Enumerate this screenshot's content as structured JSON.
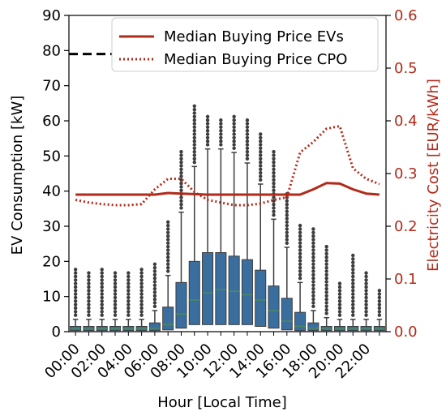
{
  "chart_data": {
    "type": "box",
    "xlabel": "Hour [Local Time]",
    "ylabel": "EV Consumption [kW]",
    "y2label": "Electricity Cost [EUR/kWh]",
    "ylim": [
      0,
      90
    ],
    "y2lim": [
      0,
      0.6
    ],
    "yticks": [
      "0",
      "10",
      "20",
      "30",
      "40",
      "50",
      "60",
      "70",
      "80",
      "90"
    ],
    "y2ticks": [
      "0.0",
      "0.1",
      "0.2",
      "0.3",
      "0.4",
      "0.5",
      "0.6"
    ],
    "xtick_labels": [
      "00:00",
      "02:00",
      "04:00",
      "06:00",
      "08:00",
      "10:00",
      "12:00",
      "14:00",
      "16:00",
      "18:00",
      "20:00",
      "22:00"
    ],
    "hours": [
      0,
      1,
      2,
      3,
      4,
      5,
      6,
      7,
      8,
      9,
      10,
      11,
      12,
      13,
      14,
      15,
      16,
      17,
      18,
      19,
      20,
      21,
      22,
      23
    ],
    "box_color": "#3a6e9e",
    "price_color": "#b22a1a",
    "reference_line": {
      "value": 79,
      "style": "dashed",
      "color": "#000000"
    },
    "boxes": [
      {
        "hour": 0,
        "q1": 0.3,
        "median": 0.8,
        "q3": 1.5,
        "whisker_low": 0,
        "whisker_high": 3.5,
        "flier_max": 18
      },
      {
        "hour": 1,
        "q1": 0.3,
        "median": 0.8,
        "q3": 1.5,
        "whisker_low": 0,
        "whisker_high": 3.5,
        "flier_max": 17.5
      },
      {
        "hour": 2,
        "q1": 0.3,
        "median": 0.8,
        "q3": 1.5,
        "whisker_low": 0,
        "whisker_high": 3.5,
        "flier_max": 18
      },
      {
        "hour": 3,
        "q1": 0.3,
        "median": 0.8,
        "q3": 1.5,
        "whisker_low": 0,
        "whisker_high": 3.5,
        "flier_max": 17
      },
      {
        "hour": 4,
        "q1": 0.3,
        "median": 0.8,
        "q3": 1.5,
        "whisker_low": 0,
        "whisker_high": 3.5,
        "flier_max": 17.5
      },
      {
        "hour": 5,
        "q1": 0.3,
        "median": 0.8,
        "q3": 1.5,
        "whisker_low": 0,
        "whisker_high": 3.5,
        "flier_max": 18
      },
      {
        "hour": 6,
        "q1": 0.3,
        "median": 1.0,
        "q3": 2.5,
        "whisker_low": 0,
        "whisker_high": 6,
        "flier_max": 20
      },
      {
        "hour": 7,
        "q1": 0.5,
        "median": 2.0,
        "q3": 7,
        "whisker_low": 0,
        "whisker_high": 16,
        "flier_max": 32
      },
      {
        "hour": 8,
        "q1": 1,
        "median": 5,
        "q3": 14,
        "whisker_low": 0,
        "whisker_high": 34,
        "flier_max": 52
      },
      {
        "hour": 9,
        "q1": 2,
        "median": 9,
        "q3": 20,
        "whisker_low": 0,
        "whisker_high": 47,
        "flier_max": 65
      },
      {
        "hour": 10,
        "q1": 2,
        "median": 11,
        "q3": 22.5,
        "whisker_low": 0,
        "whisker_high": 52,
        "flier_max": 62
      },
      {
        "hour": 11,
        "q1": 2,
        "median": 12,
        "q3": 22.5,
        "whisker_low": 0,
        "whisker_high": 52,
        "flier_max": 61
      },
      {
        "hour": 12,
        "q1": 2,
        "median": 11.5,
        "q3": 21.5,
        "whisker_low": 0,
        "whisker_high": 51,
        "flier_max": 62
      },
      {
        "hour": 13,
        "q1": 2,
        "median": 10.5,
        "q3": 20.5,
        "whisker_low": 0,
        "whisker_high": 48,
        "flier_max": 61
      },
      {
        "hour": 14,
        "q1": 1.5,
        "median": 9,
        "q3": 17.5,
        "whisker_low": 0,
        "whisker_high": 42,
        "flier_max": 57
      },
      {
        "hour": 15,
        "q1": 1,
        "median": 6,
        "q3": 13,
        "whisker_low": 0,
        "whisker_high": 32,
        "flier_max": 52
      },
      {
        "hour": 16,
        "q1": 0.5,
        "median": 3,
        "q3": 9.5,
        "whisker_low": 0,
        "whisker_high": 24,
        "flier_max": 40
      },
      {
        "hour": 17,
        "q1": 0.3,
        "median": 1.5,
        "q3": 5.5,
        "whisker_low": 0,
        "whisker_high": 14,
        "flier_max": 31
      },
      {
        "hour": 18,
        "q1": 0.3,
        "median": 1,
        "q3": 2.5,
        "whisker_low": 0,
        "whisker_high": 6,
        "flier_max": 30
      },
      {
        "hour": 19,
        "q1": 0.3,
        "median": 0.8,
        "q3": 1.5,
        "whisker_low": 0,
        "whisker_high": 4,
        "flier_max": 25
      },
      {
        "hour": 20,
        "q1": 0.3,
        "median": 0.8,
        "q3": 1.5,
        "whisker_low": 0,
        "whisker_high": 3.5,
        "flier_max": 14
      },
      {
        "hour": 21,
        "q1": 0.3,
        "median": 0.8,
        "q3": 1.5,
        "whisker_low": 0,
        "whisker_high": 3.5,
        "flier_max": 22
      },
      {
        "hour": 22,
        "q1": 0.3,
        "median": 0.8,
        "q3": 1.5,
        "whisker_low": 0,
        "whisker_high": 3.5,
        "flier_max": 17
      },
      {
        "hour": 23,
        "q1": 0.3,
        "median": 0.8,
        "q3": 1.5,
        "whisker_low": 0,
        "whisker_high": 3.5,
        "flier_max": 12
      }
    ],
    "series": [
      {
        "name": "Median Buying Price EVs",
        "style": "solid",
        "x": [
          0,
          1,
          2,
          3,
          4,
          5,
          6,
          7,
          8,
          9,
          10,
          11,
          12,
          13,
          14,
          15,
          16,
          17,
          18,
          19,
          20,
          21,
          22,
          23
        ],
        "values": [
          0.26,
          0.26,
          0.26,
          0.26,
          0.26,
          0.26,
          0.26,
          0.263,
          0.262,
          0.261,
          0.26,
          0.26,
          0.26,
          0.26,
          0.26,
          0.26,
          0.26,
          0.26,
          0.27,
          0.282,
          0.281,
          0.27,
          0.262,
          0.26
        ]
      },
      {
        "name": "Median Buying Price CPO",
        "style": "dotted",
        "x": [
          0,
          1,
          2,
          3,
          4,
          5,
          6,
          7,
          8,
          9,
          10,
          11,
          12,
          13,
          14,
          15,
          16,
          17,
          18,
          19,
          20,
          21,
          22,
          23
        ],
        "values": [
          0.25,
          0.245,
          0.242,
          0.24,
          0.24,
          0.242,
          0.27,
          0.29,
          0.29,
          0.265,
          0.25,
          0.245,
          0.24,
          0.24,
          0.243,
          0.25,
          0.255,
          0.34,
          0.36,
          0.385,
          0.39,
          0.31,
          0.29,
          0.28
        ]
      }
    ],
    "legend": {
      "position": "top-right",
      "entries": [
        "Median Buying Price EVs",
        "Median Buying Price CPO"
      ]
    }
  }
}
